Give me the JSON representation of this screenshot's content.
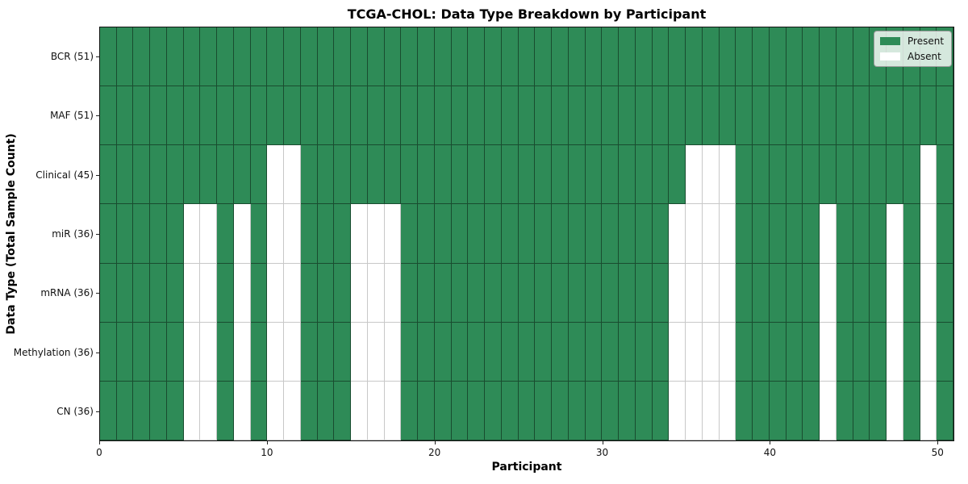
{
  "figure": {
    "title": "TCGA-CHOL: Data Type Breakdown by Participant",
    "xlabel": "Participant",
    "ylabel": "Data Type (Total Sample Count)"
  },
  "legend": {
    "position": "upper right",
    "items": [
      {
        "label": "Present",
        "color": "#2E8B57"
      },
      {
        "label": "Absent",
        "color": "#FFFFFF"
      }
    ]
  },
  "colors": {
    "present": "#2E8B57",
    "absent": "#FFFFFF",
    "present_edge": "rgba(0,0,0,0.45)",
    "absent_edge": "#c8c8c8",
    "spine": "#141414"
  },
  "chart_data": {
    "type": "heatmap",
    "title": "TCGA-CHOL: Data Type Breakdown by Participant",
    "xlabel": "Participant",
    "ylabel": "Data Type (Total Sample Count)",
    "grid": true,
    "legend_entries": [
      "Present",
      "Absent"
    ],
    "legend_position": "upper right",
    "n_participants": 51,
    "x_axis": {
      "ticks": [
        0,
        10,
        20,
        30,
        40,
        50
      ],
      "range": [
        0,
        51
      ]
    },
    "cell_values": {
      "present": 1,
      "absent": 0
    },
    "rows": [
      {
        "label": "BCR (51)",
        "data_type": "BCR",
        "present_count": 51,
        "absent_participants": []
      },
      {
        "label": "MAF (51)",
        "data_type": "MAF",
        "present_count": 51,
        "absent_participants": []
      },
      {
        "label": "Clinical (45)",
        "data_type": "Clinical",
        "present_count": 45,
        "absent_participants": [
          10,
          11,
          35,
          36,
          37,
          49
        ]
      },
      {
        "label": "miR (36)",
        "data_type": "miR",
        "present_count": 36,
        "absent_participants": [
          5,
          6,
          8,
          10,
          11,
          15,
          16,
          17,
          34,
          35,
          36,
          37,
          43,
          47,
          49
        ]
      },
      {
        "label": "mRNA (36)",
        "data_type": "mRNA",
        "present_count": 36,
        "absent_participants": [
          5,
          6,
          8,
          10,
          11,
          15,
          16,
          17,
          34,
          35,
          36,
          37,
          43,
          47,
          49
        ]
      },
      {
        "label": "Methylation (36)",
        "data_type": "Methylation",
        "present_count": 36,
        "absent_participants": [
          5,
          6,
          8,
          10,
          11,
          15,
          16,
          17,
          34,
          35,
          36,
          37,
          43,
          47,
          49
        ]
      },
      {
        "label": "CN (36)",
        "data_type": "CN",
        "present_count": 36,
        "absent_participants": [
          5,
          6,
          8,
          10,
          11,
          15,
          16,
          17,
          34,
          35,
          36,
          37,
          43,
          47,
          49
        ]
      }
    ]
  }
}
